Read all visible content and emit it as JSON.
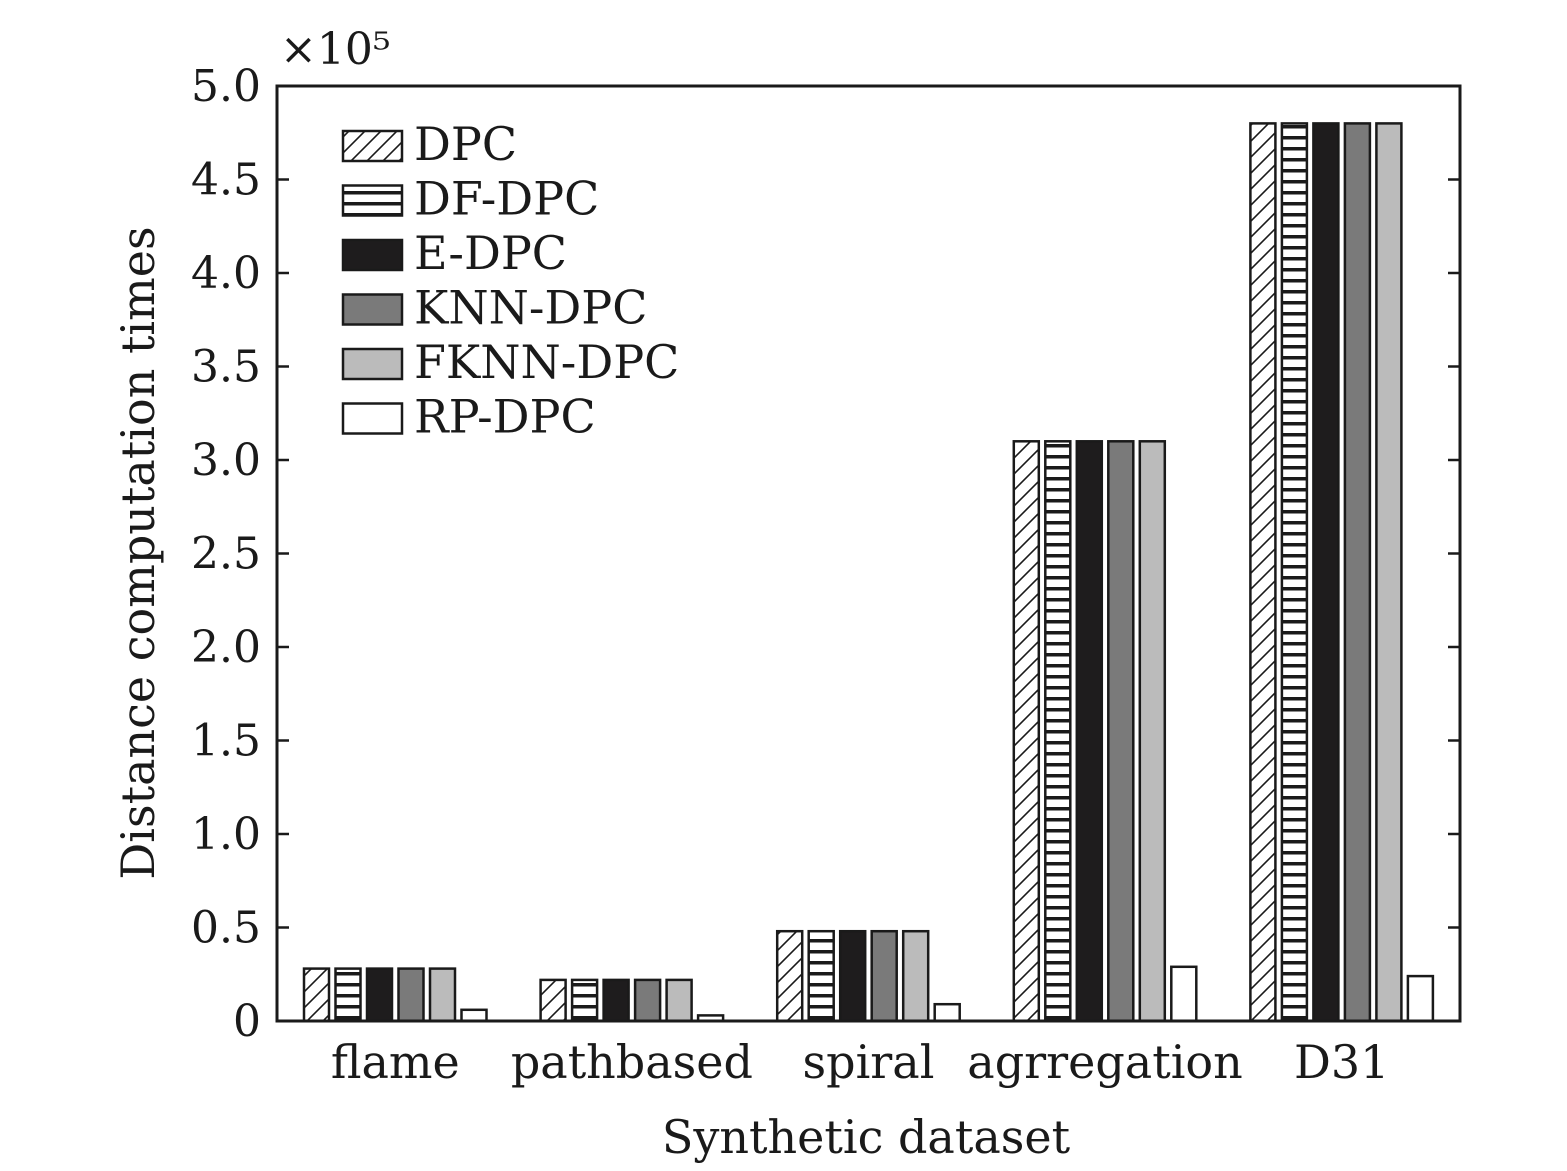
{
  "chart_data": {
    "type": "bar",
    "xlabel": "Synthetic dataset",
    "ylabel": "Distance computation times",
    "y_multiplier": "×10⁵",
    "ylim": [
      0,
      5.0
    ],
    "yticks": [
      "0",
      "0.5",
      "1.0",
      "1.5",
      "2.0",
      "2.5",
      "3.0",
      "3.5",
      "4.0",
      "4.5",
      "5.0"
    ],
    "grid": false,
    "legend_position": "top-left",
    "categories": [
      "flame",
      "pathbased",
      "spiral",
      "agrregation",
      "D31"
    ],
    "series": [
      {
        "name": "DPC",
        "pattern": "diagonal-hatch",
        "color": "#ffffff",
        "values": [
          0.28,
          0.22,
          0.48,
          3.1,
          4.8
        ]
      },
      {
        "name": "DF-DPC",
        "pattern": "horizontal-hatch",
        "color": "#ffffff",
        "values": [
          0.28,
          0.22,
          0.48,
          3.1,
          4.8
        ]
      },
      {
        "name": "E-DPC",
        "pattern": "solid",
        "color": "#1e1c1d",
        "values": [
          0.28,
          0.22,
          0.48,
          3.1,
          4.8
        ]
      },
      {
        "name": "KNN-DPC",
        "pattern": "solid",
        "color": "#7a7a7a",
        "values": [
          0.28,
          0.22,
          0.48,
          3.1,
          4.8
        ]
      },
      {
        "name": "FKNN-DPC",
        "pattern": "solid",
        "color": "#bbbbbb",
        "values": [
          0.28,
          0.22,
          0.48,
          3.1,
          4.8
        ]
      },
      {
        "name": "RP-DPC",
        "pattern": "solid",
        "color": "#ffffff",
        "values": [
          0.06,
          0.03,
          0.09,
          0.29,
          0.24
        ]
      }
    ]
  }
}
